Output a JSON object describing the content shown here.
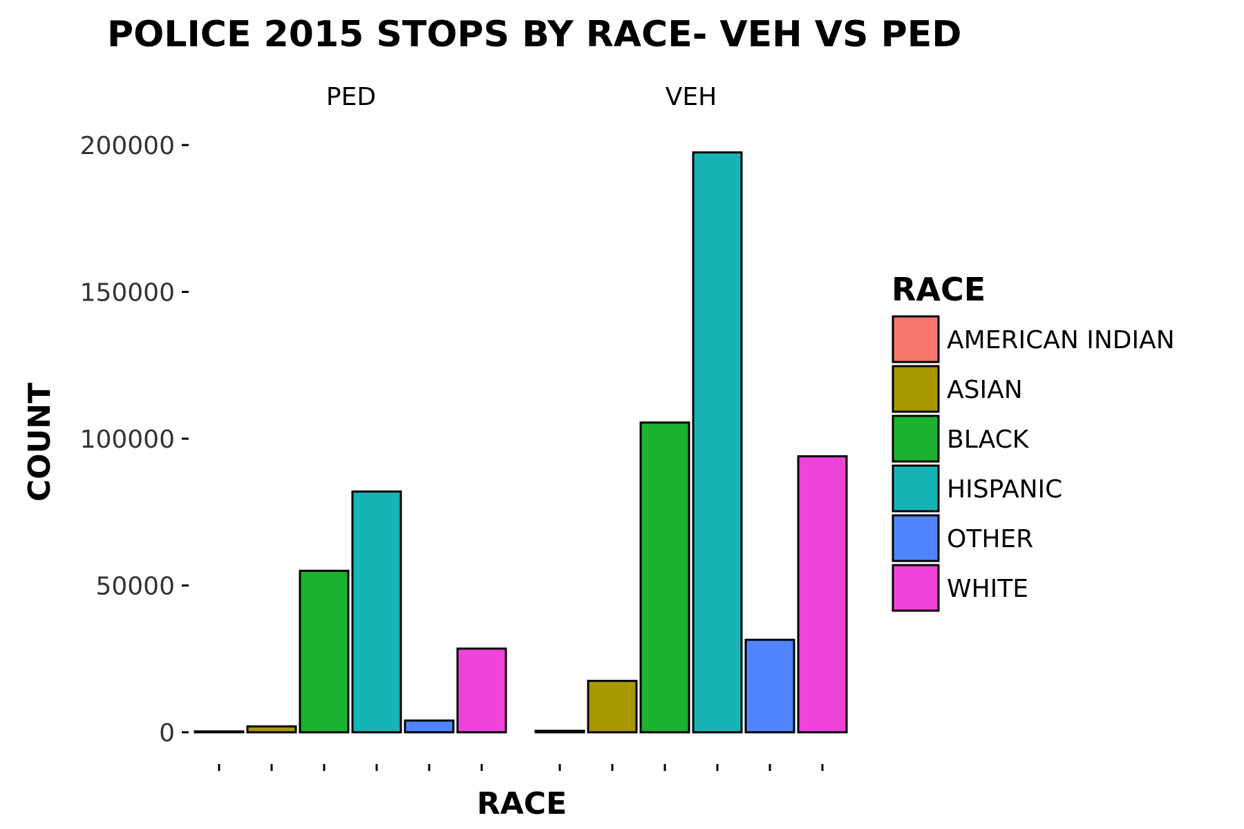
{
  "chart_data": {
    "type": "bar",
    "title": "POLICE 2015 STOPS BY RACE- VEH VS PED",
    "xlabel": "RACE",
    "ylabel": "COUNT",
    "ylim": [
      0,
      200000
    ],
    "yticks": [
      "0",
      "50000",
      "100000",
      "150000",
      "200000"
    ],
    "yticks_values": [
      0,
      50000,
      100000,
      150000,
      200000
    ],
    "grid": false,
    "legend": {
      "title": "RACE",
      "placement": "right"
    },
    "categories": [
      "AMERICAN INDIAN",
      "ASIAN",
      "BLACK",
      "HISPANIC",
      "OTHER",
      "WHITE"
    ],
    "colors": [
      "#F8766D",
      "#A89800",
      "#1AB22E",
      "#17B3B7",
      "#5185FF",
      "#EF42DB"
    ],
    "facets": [
      {
        "name": "PED",
        "values": [
          300,
          2000,
          55000,
          82000,
          4000,
          28500
        ]
      },
      {
        "name": "VEH",
        "values": [
          500,
          17500,
          105500,
          197500,
          31500,
          94000
        ]
      }
    ]
  }
}
